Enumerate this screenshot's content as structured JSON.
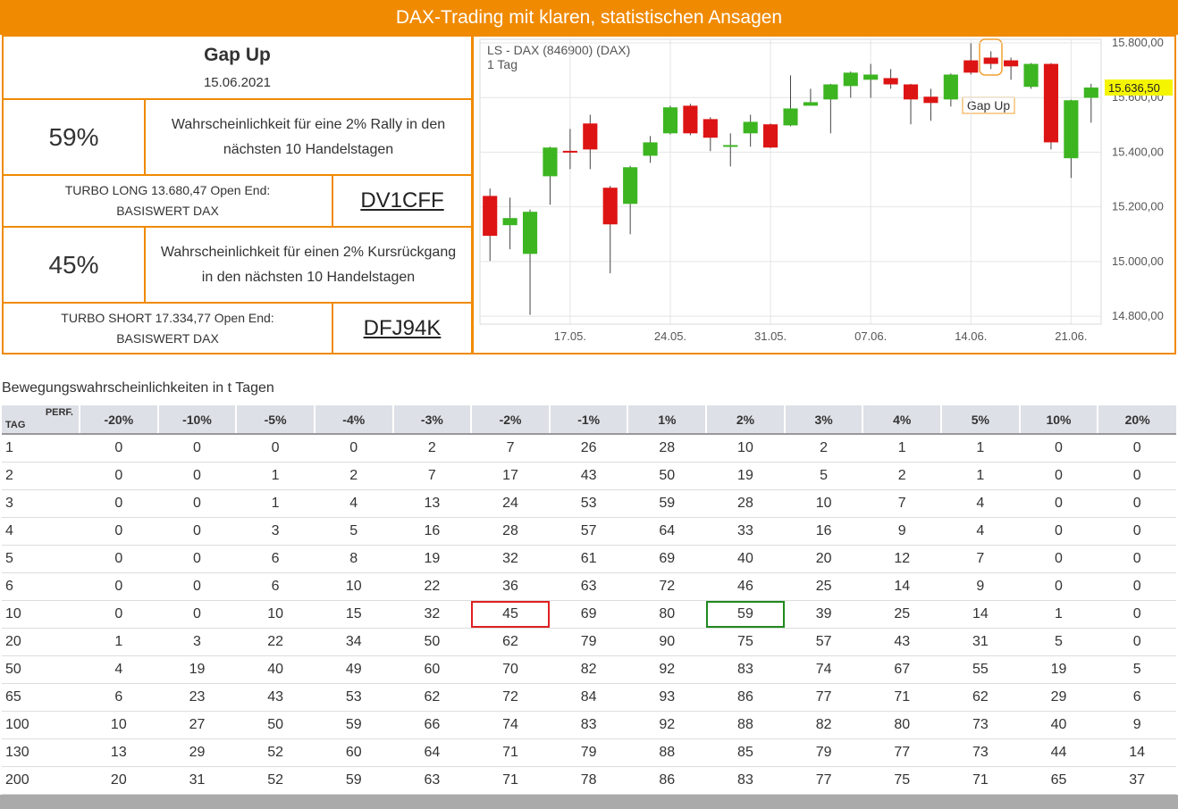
{
  "header": {
    "title": "DAX-Trading mit klaren, statistischen Ansagen"
  },
  "panel": {
    "title": "Gap Up",
    "date": "15.06.2021",
    "signals": [
      {
        "probability": "59%",
        "text": [
          "Wahrscheinlichkeit für eine 2% Rally in den",
          "nächsten 10 Handelstagen"
        ],
        "product": [
          "TURBO LONG 13.680,47 Open End:",
          "BASISWERT DAX"
        ],
        "code": "DV1CFF"
      },
      {
        "probability": "45%",
        "text": [
          "Wahrscheinlichkeit für einen 2% Kursrückgang",
          "in den nächsten 10 Handelstagen"
        ],
        "product": [
          "TURBO SHORT 17.334,77 Open End:",
          "BASISWERT DAX"
        ],
        "code": "DFJ94K"
      }
    ]
  },
  "chart_data": {
    "type": "candlestick",
    "title": "LS - DAX (846900) (DAX)",
    "subtitle": "1 Tag",
    "annotation": "Gap Up",
    "categories": [
      null,
      null,
      null,
      null,
      "17.05.",
      null,
      null,
      null,
      null,
      "24.05.",
      null,
      null,
      null,
      null,
      "31.05.",
      null,
      null,
      null,
      null,
      "07.06.",
      null,
      null,
      null,
      null,
      "14.06.",
      null,
      null,
      null,
      null,
      "21.06.",
      null
    ],
    "open": [
      15240,
      15133,
      15028,
      15312,
      15405,
      15505,
      15270,
      15211,
      15387,
      15469,
      15570,
      15521,
      15424,
      15469,
      15502,
      15498,
      15570,
      15593,
      15642,
      15665,
      15671,
      15648,
      15603,
      15593,
      15736,
      15746,
      15736,
      15639,
      15723,
      15378,
      15599
    ],
    "high": [
      15267,
      15234,
      15190,
      15420,
      15485,
      15537,
      15277,
      15350,
      15459,
      15570,
      15577,
      15528,
      15469,
      15537,
      15505,
      15681,
      15632,
      15650,
      15695,
      15723,
      15704,
      15650,
      15632,
      15688,
      15798,
      15769,
      15746,
      15726,
      15726,
      15592,
      15650
    ],
    "low": [
      15002,
      15045,
      14805,
      15208,
      15338,
      15338,
      14957,
      15100,
      15361,
      15465,
      15462,
      15404,
      15348,
      15420,
      15415,
      15495,
      15570,
      15469,
      15599,
      15599,
      15632,
      15502,
      15515,
      15567,
      15684,
      15704,
      15665,
      15632,
      15410,
      15306,
      15508
    ],
    "close": [
      15094,
      15159,
      15182,
      15417,
      15400,
      15410,
      15136,
      15345,
      15436,
      15564,
      15469,
      15453,
      15426,
      15511,
      15417,
      15560,
      15583,
      15648,
      15691,
      15684,
      15648,
      15593,
      15580,
      15684,
      15691,
      15723,
      15714,
      15723,
      15436,
      15590,
      15636.5
    ],
    "up_color": "#3cb521",
    "down_color": "#dd1414",
    "last_price": {
      "value": 15636.5,
      "label": "15.636,50"
    },
    "ylim": [
      14771,
      15813
    ],
    "yticks": [
      {
        "value": 14800,
        "label": "14.800,00"
      },
      {
        "value": 15000,
        "label": "15.000,00"
      },
      {
        "value": 15200,
        "label": "15.200,00"
      },
      {
        "value": 15400,
        "label": "15.400,00"
      },
      {
        "value": 15600,
        "label": "15.600,00"
      },
      {
        "value": 15800,
        "label": "15.800,00"
      }
    ],
    "grid": true
  },
  "table": {
    "caption": "Bewegungswahrscheinlichkeiten in t Tagen",
    "corner_top": "PERF.",
    "corner_bottom": "TAG",
    "columns": [
      "-20%",
      "-10%",
      "-5%",
      "-4%",
      "-3%",
      "-2%",
      "-1%",
      "1%",
      "2%",
      "3%",
      "4%",
      "5%",
      "10%",
      "20%"
    ],
    "rows": [
      [
        1,
        0,
        0,
        0,
        0,
        2,
        7,
        26,
        28,
        10,
        2,
        1,
        1,
        0,
        0
      ],
      [
        2,
        0,
        0,
        1,
        2,
        7,
        17,
        43,
        50,
        19,
        5,
        2,
        1,
        0,
        0
      ],
      [
        3,
        0,
        0,
        1,
        4,
        13,
        24,
        53,
        59,
        28,
        10,
        7,
        4,
        0,
        0
      ],
      [
        4,
        0,
        0,
        3,
        5,
        16,
        28,
        57,
        64,
        33,
        16,
        9,
        4,
        0,
        0
      ],
      [
        5,
        0,
        0,
        6,
        8,
        19,
        32,
        61,
        69,
        40,
        20,
        12,
        7,
        0,
        0
      ],
      [
        6,
        0,
        0,
        6,
        10,
        22,
        36,
        63,
        72,
        46,
        25,
        14,
        9,
        0,
        0
      ],
      [
        10,
        0,
        0,
        10,
        15,
        32,
        45,
        69,
        80,
        59,
        39,
        25,
        14,
        1,
        0
      ],
      [
        20,
        1,
        3,
        22,
        34,
        50,
        62,
        79,
        90,
        75,
        57,
        43,
        31,
        5,
        0
      ],
      [
        50,
        4,
        19,
        40,
        49,
        60,
        70,
        82,
        92,
        83,
        74,
        67,
        55,
        19,
        5
      ],
      [
        65,
        6,
        23,
        43,
        53,
        62,
        72,
        84,
        93,
        86,
        77,
        71,
        62,
        29,
        6
      ],
      [
        100,
        10,
        27,
        50,
        59,
        66,
        74,
        83,
        92,
        88,
        82,
        80,
        73,
        40,
        9
      ],
      [
        130,
        13,
        29,
        52,
        60,
        64,
        71,
        79,
        88,
        85,
        79,
        77,
        73,
        44,
        14
      ],
      [
        200,
        20,
        31,
        52,
        59,
        63,
        71,
        78,
        86,
        83,
        77,
        75,
        71,
        65,
        37
      ]
    ]
  }
}
